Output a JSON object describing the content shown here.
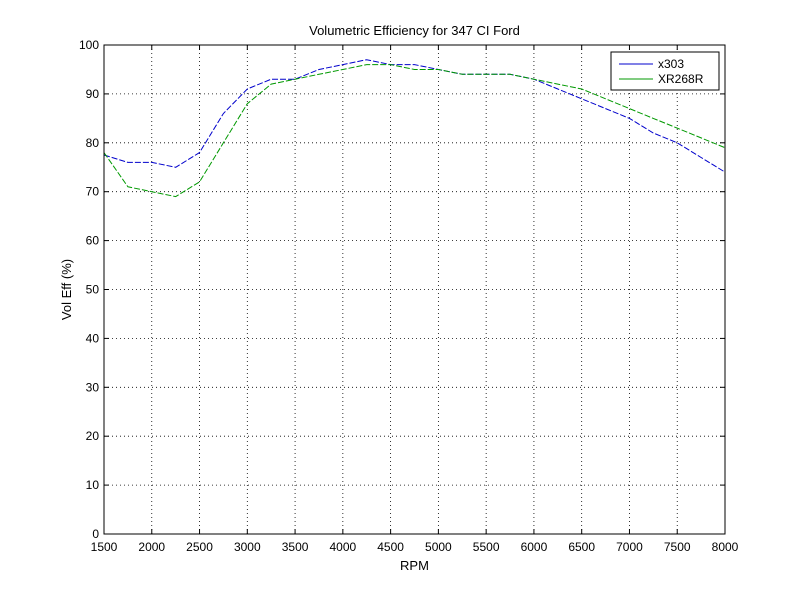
{
  "chart_data": {
    "type": "line",
    "title": "Volumetric Efficiency for 347 CI Ford",
    "xlabel": "RPM",
    "ylabel": "Vol Eff (%)",
    "xlim": [
      1500,
      8000
    ],
    "ylim": [
      0,
      100
    ],
    "xticks": [
      1500,
      2000,
      2500,
      3000,
      3500,
      4000,
      4500,
      5000,
      5500,
      6000,
      6500,
      7000,
      7500,
      8000
    ],
    "yticks": [
      0,
      10,
      20,
      30,
      40,
      50,
      60,
      70,
      80,
      90,
      100
    ],
    "grid": true,
    "legend_position": "top-right",
    "series": [
      {
        "name": "x303",
        "color": "#0000cc",
        "x": [
          1500,
          1750,
          2000,
          2250,
          2500,
          2750,
          3000,
          3250,
          3500,
          3750,
          4000,
          4250,
          4500,
          4750,
          5000,
          5250,
          5500,
          5750,
          6000,
          6250,
          6500,
          6750,
          7000,
          7250,
          7500,
          7750,
          8000
        ],
        "y": [
          77.5,
          76,
          76,
          75,
          78,
          86,
          91,
          93,
          93,
          95,
          96,
          97,
          96,
          96,
          95,
          94,
          94,
          94,
          93,
          91,
          89,
          87,
          85,
          82,
          80,
          77,
          74
        ]
      },
      {
        "name": "XR268R",
        "color": "#009900",
        "x": [
          1500,
          1750,
          2000,
          2250,
          2500,
          2750,
          3000,
          3250,
          3500,
          3750,
          4000,
          4250,
          4500,
          4750,
          5000,
          5250,
          5500,
          5750,
          6000,
          6250,
          6500,
          6750,
          7000,
          7250,
          7500,
          7750,
          8000
        ],
        "y": [
          78,
          71,
          70,
          69,
          72,
          80,
          88,
          92,
          93,
          94,
          95,
          96,
          96,
          95,
          95,
          94,
          94,
          94,
          93,
          92,
          91,
          89,
          87,
          85,
          83,
          81,
          79
        ]
      }
    ]
  }
}
